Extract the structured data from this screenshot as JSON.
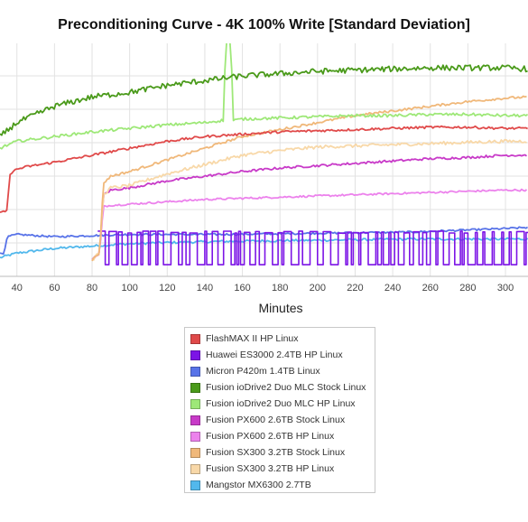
{
  "chart_data": {
    "type": "line",
    "title": "Preconditioning Curve - 4K 100% Write [Standard Deviation]",
    "xlabel": "Minutes",
    "ylabel": "",
    "x_ticks": [
      40,
      60,
      80,
      100,
      120,
      140,
      160,
      180,
      200,
      220,
      240,
      260,
      280,
      300
    ],
    "xlim": [
      31,
      312
    ],
    "grid": true,
    "legend_position": "bottom-center",
    "series": [
      {
        "name": "FlashMAX II HP Linux",
        "color": "#e04a4a",
        "x": [
          31,
          33,
          35,
          36,
          40,
          45,
          60,
          80,
          100,
          120,
          140,
          160,
          180,
          200,
          220,
          240,
          260,
          280,
          300,
          312
        ],
        "y": [
          0.27,
          0.28,
          0.28,
          0.44,
          0.46,
          0.47,
          0.49,
          0.52,
          0.55,
          0.58,
          0.6,
          0.61,
          0.62,
          0.625,
          0.63,
          0.635,
          0.64,
          0.64,
          0.635,
          0.635
        ],
        "noise": 0.005
      },
      {
        "name": "Huawei ES3000 2.4TB HP Linux",
        "color": "#7c14e6",
        "pattern": "square",
        "x_start": 83,
        "x_end": 312,
        "low": 0.05,
        "high": 0.19
      },
      {
        "name": "Micron P420m 1.4TB Linux",
        "color": "#5873e8",
        "x": [
          31,
          33,
          35,
          40,
          50,
          60,
          80,
          100,
          150,
          200,
          250,
          300,
          312
        ],
        "y": [
          0.1,
          0.1,
          0.17,
          0.18,
          0.175,
          0.17,
          0.175,
          0.18,
          0.18,
          0.185,
          0.19,
          0.205,
          0.21
        ],
        "noise": 0.004
      },
      {
        "name": "Fusion ioDrive2 Duo MLC Stock Linux",
        "color": "#4a9a1a",
        "x": [
          31,
          40,
          60,
          80,
          100,
          120,
          140,
          160,
          180,
          200,
          220,
          240,
          260,
          280,
          300,
          312
        ],
        "y": [
          0.6,
          0.66,
          0.73,
          0.77,
          0.79,
          0.82,
          0.84,
          0.86,
          0.87,
          0.88,
          0.885,
          0.89,
          0.895,
          0.895,
          0.895,
          0.89
        ],
        "noise": 0.012
      },
      {
        "name": "Fusion ioDrive2 Duo MLC HP Linux",
        "color": "#9ee878",
        "x": [
          31,
          40,
          60,
          80,
          100,
          120,
          140,
          145,
          150,
          151,
          152,
          153,
          154,
          155,
          156,
          160,
          180,
          200,
          220,
          240,
          260,
          280,
          300,
          312
        ],
        "y": [
          0.55,
          0.58,
          0.6,
          0.62,
          0.635,
          0.65,
          0.66,
          0.665,
          0.67,
          0.98,
          1.02,
          1.02,
          0.98,
          0.67,
          0.67,
          0.675,
          0.68,
          0.685,
          0.69,
          0.69,
          0.695,
          0.695,
          0.69,
          0.69
        ],
        "noise": 0.006
      },
      {
        "name": "Fusion PX600 2.6TB Stock Linux",
        "color": "#c83ac8",
        "x": [
          80,
          84,
          86,
          90,
          100,
          120,
          140,
          160,
          180,
          200,
          220,
          240,
          260,
          280,
          300,
          312
        ],
        "y": [
          0.07,
          0.1,
          0.35,
          0.37,
          0.38,
          0.41,
          0.43,
          0.45,
          0.465,
          0.475,
          0.485,
          0.495,
          0.505,
          0.51,
          0.52,
          0.52
        ],
        "noise": 0.005
      },
      {
        "name": "Fusion PX600 2.6TB HP Linux",
        "color": "#ec82ec",
        "x": [
          80,
          84,
          86,
          90,
          100,
          120,
          140,
          160,
          180,
          200,
          220,
          240,
          260,
          280,
          300,
          312
        ],
        "y": [
          0.07,
          0.1,
          0.3,
          0.305,
          0.31,
          0.32,
          0.33,
          0.335,
          0.34,
          0.345,
          0.35,
          0.355,
          0.36,
          0.365,
          0.37,
          0.37
        ],
        "noise": 0.004
      },
      {
        "name": "Fusion SX300 3.2TB Stock Linux",
        "color": "#f0b87a",
        "x": [
          80,
          84,
          86,
          90,
          100,
          120,
          140,
          160,
          180,
          200,
          220,
          240,
          260,
          280,
          300,
          312
        ],
        "y": [
          0.07,
          0.1,
          0.4,
          0.43,
          0.45,
          0.5,
          0.55,
          0.6,
          0.63,
          0.66,
          0.69,
          0.71,
          0.73,
          0.75,
          0.765,
          0.77
        ],
        "noise": 0.005
      },
      {
        "name": "Fusion SX300 3.2TB HP Linux",
        "color": "#f8d8a8",
        "x": [
          80,
          84,
          86,
          90,
          100,
          120,
          140,
          160,
          180,
          200,
          220,
          240,
          260,
          280,
          300,
          312
        ],
        "y": [
          0.07,
          0.1,
          0.35,
          0.38,
          0.39,
          0.44,
          0.48,
          0.52,
          0.54,
          0.555,
          0.56,
          0.565,
          0.57,
          0.575,
          0.58,
          0.58
        ],
        "noise": 0.007
      },
      {
        "name": "Mangstor MX6300 2.7TB",
        "color": "#52b8ec",
        "x": [
          31,
          40,
          60,
          80,
          100,
          120,
          150,
          200,
          250,
          300,
          312
        ],
        "y": [
          0.08,
          0.1,
          0.12,
          0.13,
          0.14,
          0.145,
          0.15,
          0.155,
          0.16,
          0.16,
          0.16
        ],
        "noise": 0.005
      }
    ]
  }
}
